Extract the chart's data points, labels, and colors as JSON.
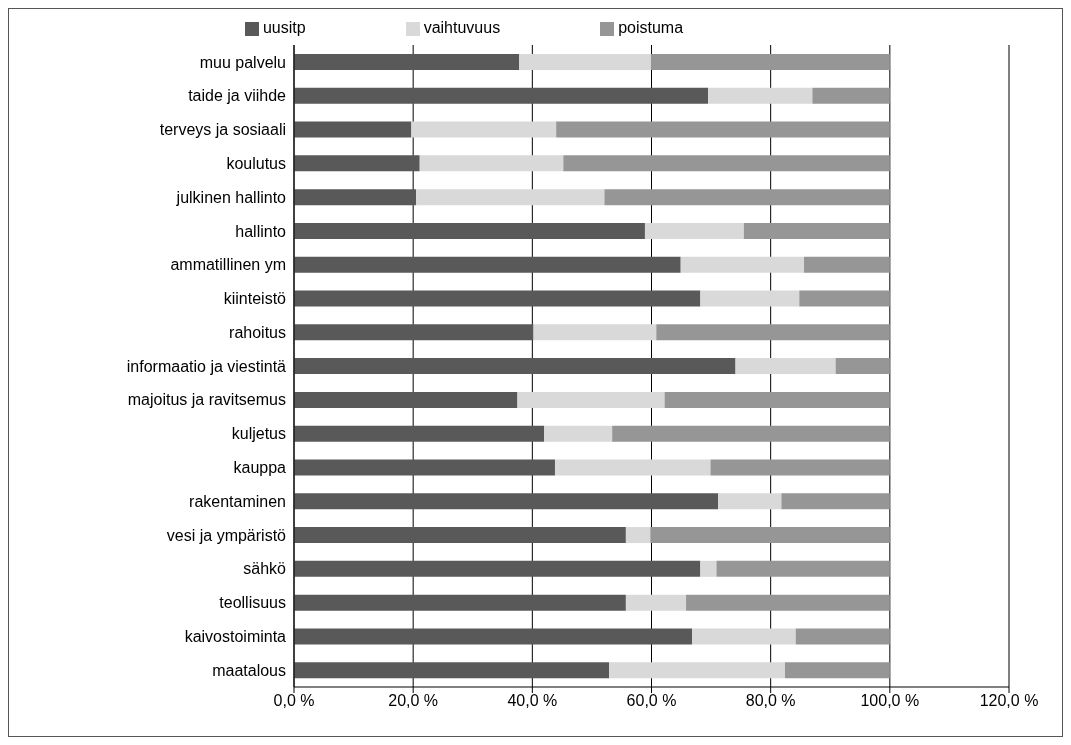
{
  "chart_data": {
    "type": "bar",
    "orientation": "horizontal",
    "stacked": true,
    "categories": [
      "muu palvelu",
      "taide ja viihde",
      "terveys ja sosiaali",
      "koulutus",
      "julkinen hallinto",
      "hallinto",
      "ammatillinen ym",
      "kiinteistö",
      "rahoitus",
      "informaatio ja viestintä",
      "majoitus ja ravitsemus",
      "kuljetus",
      "kauppa",
      "rakentaminen",
      "vesi ja ympäristö",
      "sähkö",
      "teollisuus",
      "kaivostoiminta",
      "maatalous"
    ],
    "series": [
      {
        "name": "uusitp",
        "color": "#595959",
        "values": [
          37.8,
          69.5,
          19.7,
          21.1,
          20.5,
          58.9,
          64.9,
          68.2,
          40.2,
          74.1,
          37.5,
          42.0,
          43.8,
          71.2,
          55.7,
          68.2,
          55.7,
          66.8,
          52.9
        ]
      },
      {
        "name": "vaihtuvuus",
        "color": "#d9d9d9",
        "values": [
          22.1,
          17.5,
          24.3,
          24.1,
          31.6,
          16.6,
          20.7,
          16.6,
          20.6,
          16.8,
          24.7,
          11.4,
          26.1,
          10.6,
          4.1,
          2.7,
          10.1,
          17.4,
          29.5
        ]
      },
      {
        "name": "poistuma",
        "color": "#969696",
        "values": [
          40.1,
          13.0,
          56.0,
          54.8,
          47.9,
          24.5,
          14.4,
          15.2,
          39.2,
          9.1,
          37.8,
          46.6,
          30.1,
          18.2,
          40.2,
          29.1,
          34.2,
          15.8,
          17.6
        ]
      }
    ],
    "xlim": [
      0,
      120
    ],
    "xticks": [
      {
        "value": 0,
        "label": "0,0 %"
      },
      {
        "value": 20,
        "label": "20,0 %"
      },
      {
        "value": 40,
        "label": "40,0 %"
      },
      {
        "value": 60,
        "label": "60,0 %"
      },
      {
        "value": 80,
        "label": "80,0 %"
      },
      {
        "value": 100,
        "label": "100,0 %"
      },
      {
        "value": 120,
        "label": "120,0 %"
      }
    ],
    "grid": "x",
    "legend": "top"
  }
}
